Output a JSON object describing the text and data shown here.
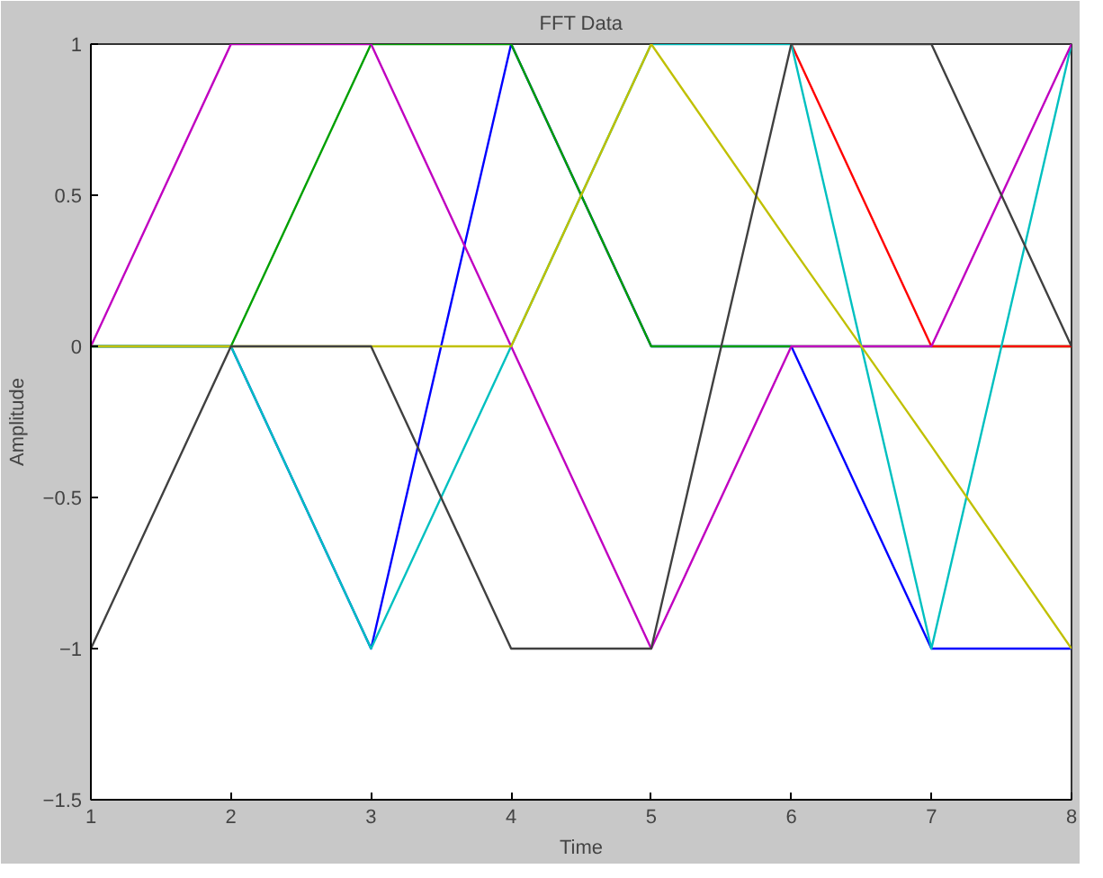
{
  "chart_data": {
    "type": "line",
    "title": "FFT Data",
    "xlabel": "Time",
    "ylabel": "Amplitude",
    "x": [
      1,
      2,
      3,
      4,
      5,
      6,
      7,
      8
    ],
    "series": [
      {
        "color": "#0000ff",
        "values": [
          0,
          0,
          -1,
          1,
          0,
          0,
          -1,
          -1
        ]
      },
      {
        "color": "#00a000",
        "values": [
          0,
          0,
          1,
          1,
          0,
          0,
          0,
          0
        ]
      },
      {
        "color": "#ff0000",
        "values": [
          null,
          null,
          null,
          null,
          null,
          1,
          0,
          0
        ]
      },
      {
        "color": "#00c0c0",
        "values": [
          0,
          0,
          -1,
          0,
          1,
          1,
          -1,
          1
        ]
      },
      {
        "color": "#c000c0",
        "values": [
          0,
          1,
          1,
          0,
          -1,
          0,
          0,
          1
        ]
      },
      {
        "color": "#c0c000",
        "values": [
          0,
          0,
          0,
          0,
          1,
          0.33,
          -0.33,
          -1
        ]
      },
      {
        "color": "#404040",
        "values": [
          -1,
          0,
          0,
          -1,
          -1,
          1,
          1,
          0
        ]
      }
    ],
    "xlim": [
      1,
      8
    ],
    "ylim": [
      -1.5,
      1
    ],
    "xticks": [
      1,
      2,
      3,
      4,
      5,
      6,
      7,
      8
    ],
    "yticks": [
      -1.5,
      -1,
      -0.5,
      0,
      0.5,
      1
    ],
    "grid": false
  }
}
